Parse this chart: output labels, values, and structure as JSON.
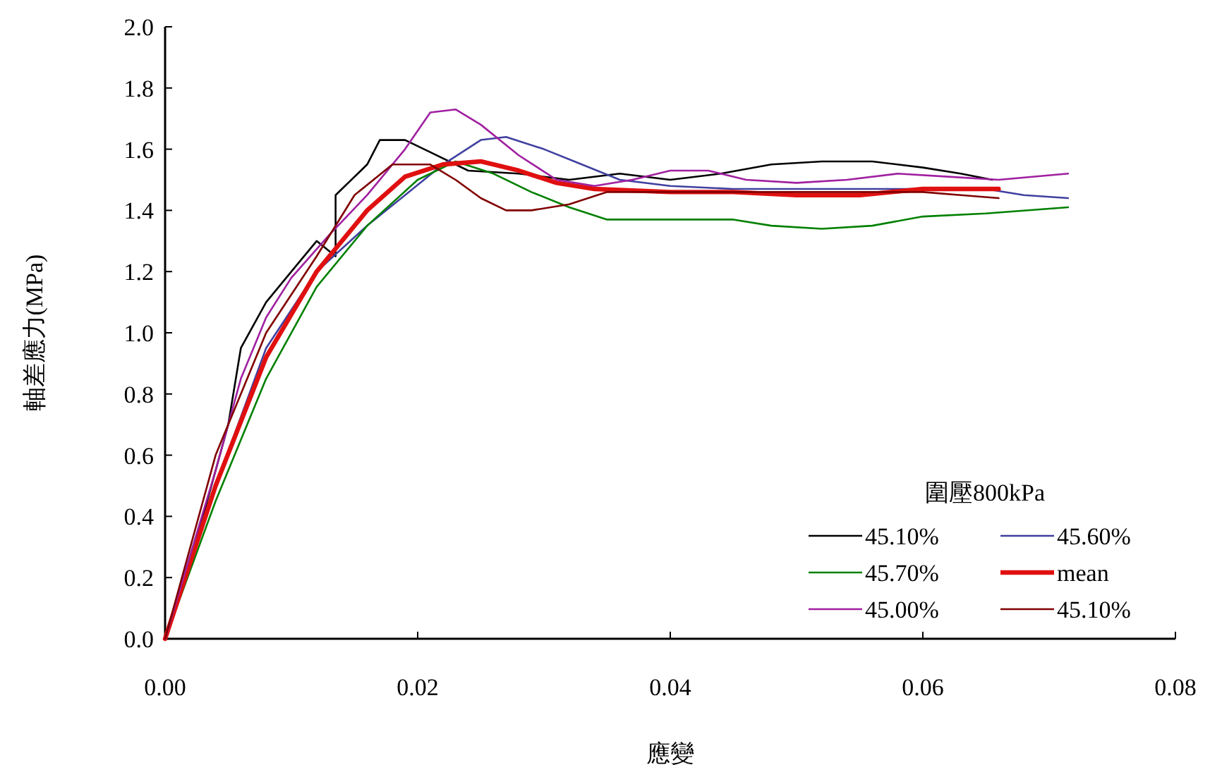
{
  "chart_data": {
    "type": "line",
    "xlabel": "應變",
    "ylabel": "軸差應力(MPa)",
    "legend_title": "圍壓800kPa",
    "legend": "bottom right",
    "grid": false,
    "line_style": "solid",
    "xlim": [
      0,
      0.08
    ],
    "xticks": [
      {
        "value": 0,
        "label": "0.00"
      },
      {
        "value": 0.02,
        "label": "0.02"
      },
      {
        "value": 0.04,
        "label": "0.04"
      },
      {
        "value": 0.06,
        "label": "0.06"
      },
      {
        "value": 0.08,
        "label": "0.08"
      }
    ],
    "ylim": [
      0,
      2
    ],
    "yticks": [
      {
        "value": 0,
        "label": "0.0"
      },
      {
        "value": 0.2,
        "label": "0.2"
      },
      {
        "value": 0.4,
        "label": "0.4"
      },
      {
        "value": 0.6,
        "label": "0.6"
      },
      {
        "value": 0.8,
        "label": "0.8"
      },
      {
        "value": 1,
        "label": "1.0"
      },
      {
        "value": 1.2,
        "label": "1.2"
      },
      {
        "value": 1.4,
        "label": "1.4"
      },
      {
        "value": 1.6,
        "label": "1.6"
      },
      {
        "value": 1.8,
        "label": "1.8"
      },
      {
        "value": 2,
        "label": "2.0"
      }
    ],
    "series": [
      {
        "name": "45.10%",
        "color": "#000000",
        "x": [
          0,
          0.003,
          0.005,
          0.006,
          0.008,
          0.01,
          0.012,
          0.0135,
          0.0135,
          0.016,
          0.017,
          0.019,
          0.021,
          0.024,
          0.028,
          0.032,
          0.036,
          0.04,
          0.044,
          0.048,
          0.052,
          0.056,
          0.06,
          0.063,
          0.0655
        ],
        "values": [
          0,
          0.4,
          0.7,
          0.95,
          1.1,
          1.2,
          1.3,
          1.25,
          1.45,
          1.55,
          1.63,
          1.63,
          1.59,
          1.53,
          1.52,
          1.5,
          1.52,
          1.5,
          1.52,
          1.55,
          1.56,
          1.56,
          1.54,
          1.52,
          1.5
        ]
      },
      {
        "name": "45.60%",
        "color": "#4040a0",
        "x": [
          0,
          0.004,
          0.008,
          0.012,
          0.016,
          0.019,
          0.022,
          0.025,
          0.027,
          0.03,
          0.033,
          0.036,
          0.04,
          0.045,
          0.05,
          0.055,
          0.06,
          0.065,
          0.068,
          0.0715
        ],
        "values": [
          0,
          0.5,
          0.95,
          1.2,
          1.35,
          1.45,
          1.55,
          1.63,
          1.64,
          1.6,
          1.55,
          1.5,
          1.48,
          1.47,
          1.47,
          1.47,
          1.47,
          1.47,
          1.45,
          1.44
        ]
      },
      {
        "name": "45.70%",
        "color": "#008000",
        "x": [
          0,
          0.004,
          0.008,
          0.012,
          0.016,
          0.02,
          0.023,
          0.026,
          0.029,
          0.032,
          0.035,
          0.04,
          0.045,
          0.048,
          0.052,
          0.056,
          0.06,
          0.065,
          0.0715
        ],
        "values": [
          0,
          0.45,
          0.85,
          1.15,
          1.35,
          1.5,
          1.56,
          1.52,
          1.46,
          1.41,
          1.37,
          1.37,
          1.37,
          1.35,
          1.34,
          1.35,
          1.38,
          1.39,
          1.41
        ]
      },
      {
        "name": "mean",
        "color": "#e01010",
        "x": [
          0,
          0.004,
          0.008,
          0.012,
          0.016,
          0.019,
          0.022,
          0.025,
          0.028,
          0.031,
          0.034,
          0.04,
          0.045,
          0.05,
          0.055,
          0.06,
          0.066
        ],
        "values": [
          0,
          0.5,
          0.92,
          1.2,
          1.4,
          1.51,
          1.55,
          1.56,
          1.53,
          1.49,
          1.47,
          1.46,
          1.46,
          1.45,
          1.45,
          1.47,
          1.47
        ]
      },
      {
        "name": "45.00%",
        "color": "#a020a0",
        "x": [
          0,
          0.004,
          0.006,
          0.008,
          0.01,
          0.013,
          0.016,
          0.019,
          0.021,
          0.023,
          0.025,
          0.028,
          0.031,
          0.034,
          0.037,
          0.04,
          0.043,
          0.046,
          0.05,
          0.054,
          0.058,
          0.062,
          0.066,
          0.0715
        ],
        "values": [
          0,
          0.55,
          0.85,
          1.05,
          1.18,
          1.32,
          1.45,
          1.6,
          1.72,
          1.73,
          1.68,
          1.58,
          1.5,
          1.48,
          1.5,
          1.53,
          1.53,
          1.5,
          1.49,
          1.5,
          1.52,
          1.51,
          1.5,
          1.52
        ]
      },
      {
        "name": "45.10%",
        "color": "#800000",
        "x": [
          0,
          0.004,
          0.008,
          0.012,
          0.015,
          0.018,
          0.021,
          0.023,
          0.025,
          0.027,
          0.029,
          0.032,
          0.035,
          0.04,
          0.045,
          0.05,
          0.055,
          0.06,
          0.063,
          0.066
        ],
        "values": [
          0,
          0.6,
          1,
          1.25,
          1.45,
          1.55,
          1.55,
          1.5,
          1.44,
          1.4,
          1.4,
          1.42,
          1.46,
          1.46,
          1.46,
          1.46,
          1.46,
          1.46,
          1.45,
          1.44
        ]
      }
    ]
  }
}
